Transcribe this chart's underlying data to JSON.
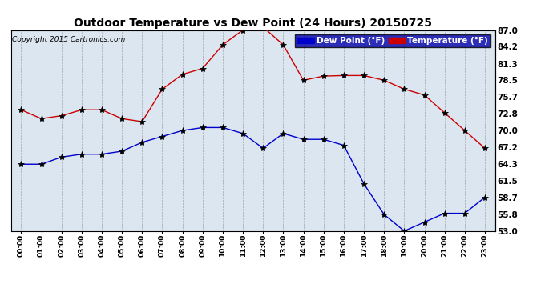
{
  "title": "Outdoor Temperature vs Dew Point (24 Hours) 20150725",
  "copyright": "Copyright 2015 Cartronics.com",
  "hours": [
    "00:00",
    "01:00",
    "02:00",
    "03:00",
    "04:00",
    "05:00",
    "06:00",
    "07:00",
    "08:00",
    "09:00",
    "10:00",
    "11:00",
    "12:00",
    "13:00",
    "14:00",
    "15:00",
    "16:00",
    "17:00",
    "18:00",
    "19:00",
    "20:00",
    "21:00",
    "22:00",
    "23:00"
  ],
  "temperature": [
    73.5,
    72.0,
    72.5,
    73.5,
    73.5,
    72.0,
    71.5,
    77.0,
    79.5,
    80.5,
    84.5,
    87.0,
    87.5,
    84.5,
    78.5,
    79.2,
    79.3,
    79.3,
    78.5,
    77.0,
    76.0,
    73.0,
    70.0,
    67.0
  ],
  "dew_point": [
    64.3,
    64.3,
    65.5,
    66.0,
    66.0,
    66.5,
    68.0,
    69.0,
    70.0,
    70.5,
    70.5,
    69.5,
    67.0,
    69.5,
    68.5,
    68.5,
    67.5,
    61.0,
    55.8,
    53.0,
    54.5,
    56.0,
    56.0,
    58.7
  ],
  "temp_color": "#cc0000",
  "dew_color": "#0000cc",
  "ylim_min": 53.0,
  "ylim_max": 87.0,
  "yticks": [
    53.0,
    55.8,
    58.7,
    61.5,
    64.3,
    67.2,
    70.0,
    72.8,
    75.7,
    78.5,
    81.3,
    84.2,
    87.0
  ],
  "bg_color": "#ffffff",
  "plot_bg_color": "#dce6f0",
  "grid_color": "#888888",
  "legend_dew_label": "Dew Point (°F)",
  "legend_temp_label": "Temperature (°F)",
  "legend_bg": "#0000aa"
}
